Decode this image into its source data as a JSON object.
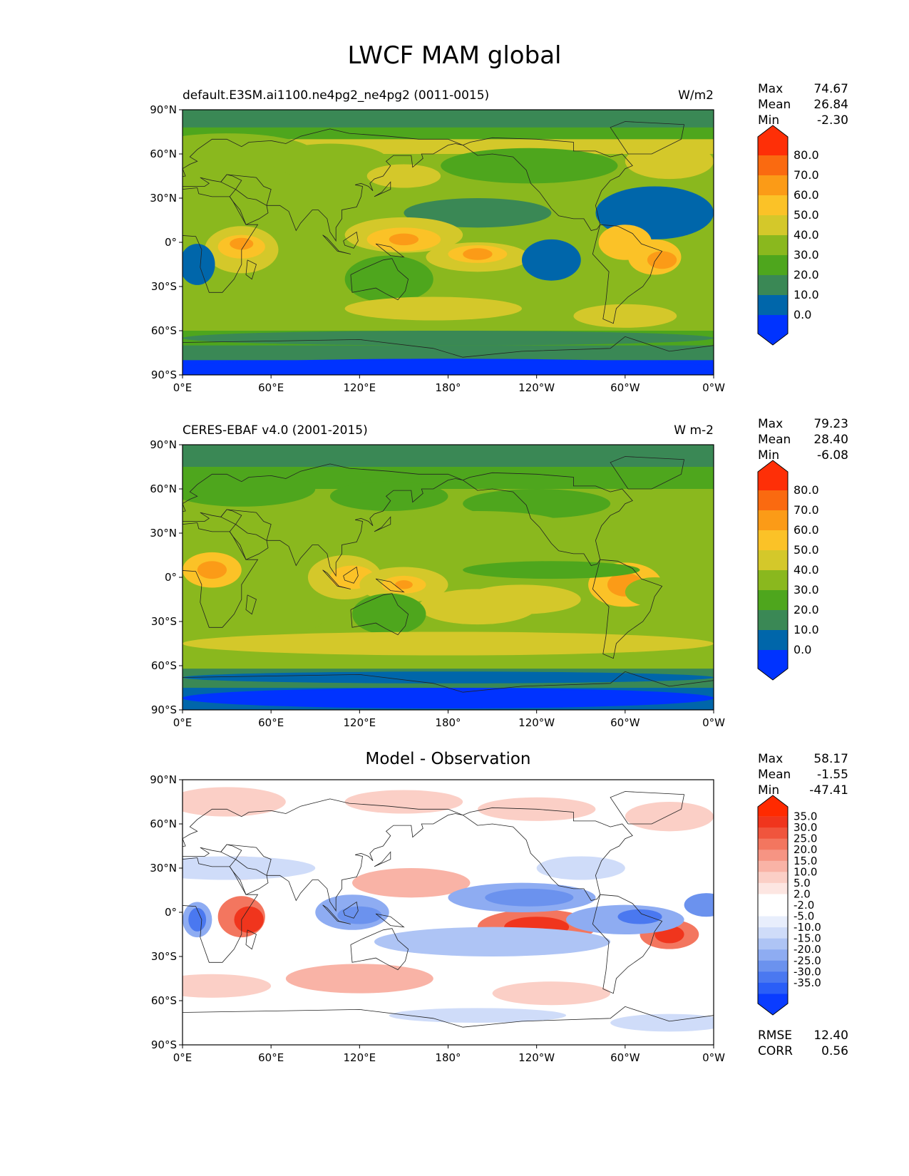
{
  "title": "LWCF MAM global",
  "lat_ticks": [
    "90°N",
    "60°N",
    "30°N",
    "0°",
    "30°S",
    "60°S",
    "90°S"
  ],
  "lon_ticks": [
    "0°E",
    "60°E",
    "120°E",
    "180°",
    "120°W",
    "60°W",
    "0°W"
  ],
  "panels": [
    {
      "title_left": "default.E3SM.ai1100.ne4pg2_ne4pg2 (0011-0015)",
      "title_center": "",
      "units": "W/m2",
      "stats": [
        {
          "label": "Max",
          "value": "74.67"
        },
        {
          "label": "Mean",
          "value": "26.84"
        },
        {
          "label": "Min",
          "value": "-2.30"
        }
      ],
      "colorbar": {
        "colors": [
          "#0033ff",
          "#0066aa",
          "#3a8855",
          "#4ea61d",
          "#8ab81e",
          "#d4c82a",
          "#fbc227",
          "#fb9b17",
          "#fa6a10",
          "#fe2f07"
        ],
        "labels": [
          "80.0",
          "70.0",
          "60.0",
          "50.0",
          "40.0",
          "30.0",
          "20.0",
          "10.0",
          "0.0"
        ]
      }
    },
    {
      "title_left": "CERES-EBAF v4.0 (2001-2015)",
      "title_center": "",
      "units": "W m-2",
      "stats": [
        {
          "label": "Max",
          "value": "79.23"
        },
        {
          "label": "Mean",
          "value": "28.40"
        },
        {
          "label": "Min",
          "value": "-6.08"
        }
      ],
      "colorbar": {
        "colors": [
          "#0033ff",
          "#0066aa",
          "#3a8855",
          "#4ea61d",
          "#8ab81e",
          "#d4c82a",
          "#fbc227",
          "#fb9b17",
          "#fa6a10",
          "#fe2f07"
        ],
        "labels": [
          "80.0",
          "70.0",
          "60.0",
          "50.0",
          "40.0",
          "30.0",
          "20.0",
          "10.0",
          "0.0"
        ]
      }
    },
    {
      "title_left": "",
      "title_center": "Model - Observation",
      "units": "",
      "stats": [
        {
          "label": "Max",
          "value": "58.17"
        },
        {
          "label": "Mean",
          "value": "-1.55"
        },
        {
          "label": "Min",
          "value": "-47.41"
        }
      ],
      "colorbar": {
        "colors": [
          "#0a3cff",
          "#2a5ef7",
          "#4a78f0",
          "#6b92ee",
          "#8eacf2",
          "#aec4f5",
          "#cfdcf9",
          "#e8eefc",
          "#ffffff",
          "#ffffff",
          "#fde6e2",
          "#fbcfc6",
          "#f9b3a6",
          "#f69483",
          "#f3765f",
          "#f0553d",
          "#f0351d",
          "#ff2a00"
        ],
        "labels": [
          "35.0",
          "30.0",
          "25.0",
          "20.0",
          "15.0",
          "10.0",
          "5.0",
          "2.0",
          "-2.0",
          "-5.0",
          "-10.0",
          "-15.0",
          "-20.0",
          "-25.0",
          "-30.0",
          "-35.0"
        ]
      },
      "footer": [
        {
          "label": "RMSE",
          "value": "12.40"
        },
        {
          "label": "CORR",
          "value": "0.56"
        }
      ]
    }
  ]
}
